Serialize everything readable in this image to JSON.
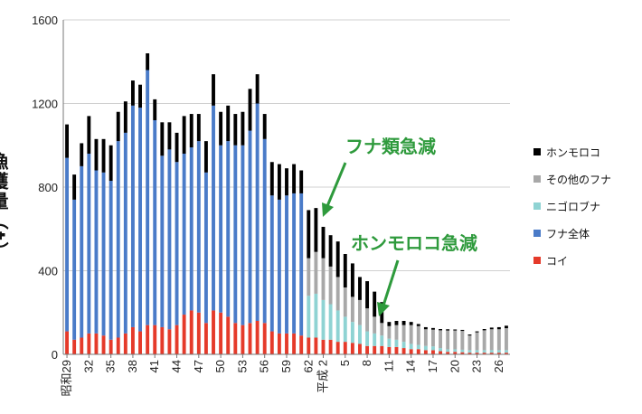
{
  "chart_data": {
    "type": "bar",
    "stacked": true,
    "ylabel": "漁獲量（t）",
    "ylim": [
      0,
      1600
    ],
    "yticks": [
      0,
      400,
      800,
      1200,
      1600
    ],
    "grid": true,
    "legend_position": "right",
    "xticks": [
      {
        "at": 0,
        "label": "昭和29"
      },
      {
        "at": 3,
        "label": "32"
      },
      {
        "at": 6,
        "label": "35"
      },
      {
        "at": 9,
        "label": "38"
      },
      {
        "at": 12,
        "label": "41"
      },
      {
        "at": 15,
        "label": "44"
      },
      {
        "at": 18,
        "label": "47"
      },
      {
        "at": 21,
        "label": "50"
      },
      {
        "at": 24,
        "label": "53"
      },
      {
        "at": 27,
        "label": "56"
      },
      {
        "at": 30,
        "label": "59"
      },
      {
        "at": 33,
        "label": "62"
      },
      {
        "at": 35,
        "label": "平成 2"
      },
      {
        "at": 38,
        "label": "5"
      },
      {
        "at": 41,
        "label": "8"
      },
      {
        "at": 44,
        "label": "11"
      },
      {
        "at": 47,
        "label": "14"
      },
      {
        "at": 50,
        "label": "17"
      },
      {
        "at": 53,
        "label": "20"
      },
      {
        "at": 56,
        "label": "23"
      },
      {
        "at": 59,
        "label": "26"
      }
    ],
    "x": [
      "S29",
      "S30",
      "S31",
      "S32",
      "S33",
      "S34",
      "S35",
      "S36",
      "S37",
      "S38",
      "S39",
      "S40",
      "S41",
      "S42",
      "S43",
      "S44",
      "S45",
      "S46",
      "S47",
      "S48",
      "S49",
      "S50",
      "S51",
      "S52",
      "S53",
      "S54",
      "S55",
      "S56",
      "S57",
      "S58",
      "S59",
      "S60",
      "S61",
      "S62",
      "S63",
      "H1",
      "H2",
      "H3",
      "H4",
      "H5",
      "H6",
      "H7",
      "H8",
      "H9",
      "H10",
      "H11",
      "H12",
      "H13",
      "H14",
      "H15",
      "H16",
      "H17",
      "H18",
      "H19",
      "H20",
      "H21",
      "H22",
      "H23",
      "H24",
      "H25",
      "H26"
    ],
    "series": [
      {
        "name": "コイ",
        "color": "#e53a2a",
        "values": [
          110,
          70,
          80,
          100,
          100,
          90,
          70,
          80,
          100,
          130,
          110,
          140,
          140,
          130,
          120,
          140,
          190,
          210,
          200,
          150,
          210,
          200,
          180,
          150,
          140,
          150,
          160,
          150,
          110,
          100,
          100,
          100,
          90,
          80,
          80,
          70,
          70,
          60,
          60,
          55,
          50,
          40,
          40,
          40,
          35,
          35,
          30,
          25,
          25,
          20,
          20,
          15,
          12,
          12,
          10,
          8,
          8,
          8,
          8,
          8,
          8
        ]
      },
      {
        "name": "フナ全体",
        "color": "#4a7bc8",
        "values": [
          830,
          670,
          820,
          860,
          780,
          780,
          760,
          940,
          960,
          1060,
          1070,
          1220,
          980,
          820,
          860,
          780,
          770,
          780,
          820,
          720,
          980,
          800,
          840,
          850,
          860,
          920,
          1040,
          880,
          650,
          640,
          660,
          670,
          680,
          0,
          0,
          0,
          0,
          0,
          0,
          0,
          0,
          0,
          0,
          0,
          0,
          0,
          0,
          0,
          0,
          0,
          0,
          0,
          0,
          0,
          0,
          0,
          0,
          0,
          0,
          0,
          0
        ]
      },
      {
        "name": "ニゴロブナ",
        "color": "#8fd3d3",
        "values": [
          0,
          0,
          0,
          0,
          0,
          0,
          0,
          0,
          0,
          0,
          0,
          0,
          0,
          0,
          0,
          0,
          0,
          0,
          0,
          0,
          0,
          0,
          0,
          0,
          0,
          0,
          0,
          0,
          0,
          0,
          0,
          0,
          0,
          200,
          210,
          190,
          170,
          150,
          120,
          100,
          90,
          70,
          60,
          50,
          40,
          35,
          30,
          25,
          20,
          20,
          18,
          15,
          12,
          12,
          12,
          12,
          12,
          12,
          12,
          12,
          12
        ]
      },
      {
        "name": "その他のフナ",
        "color": "#a8a8a8",
        "values": [
          0,
          0,
          0,
          0,
          0,
          0,
          0,
          0,
          0,
          0,
          0,
          0,
          0,
          0,
          0,
          0,
          0,
          0,
          0,
          0,
          0,
          0,
          0,
          0,
          0,
          0,
          0,
          0,
          0,
          0,
          0,
          0,
          0,
          180,
          200,
          200,
          180,
          160,
          140,
          120,
          120,
          110,
          80,
          60,
          60,
          70,
          80,
          90,
          90,
          80,
          80,
          85,
          90,
          90,
          90,
          70,
          85,
          95,
          100,
          100,
          105
        ]
      },
      {
        "name": "ホンモロコ",
        "color": "#000000",
        "values": [
          160,
          120,
          110,
          180,
          150,
          160,
          170,
          140,
          150,
          120,
          110,
          80,
          100,
          160,
          130,
          140,
          180,
          160,
          130,
          150,
          150,
          160,
          170,
          150,
          160,
          200,
          140,
          120,
          160,
          170,
          130,
          140,
          110,
          230,
          210,
          150,
          150,
          170,
          160,
          160,
          110,
          130,
          120,
          100,
          20,
          20,
          20,
          15,
          10,
          10,
          8,
          6,
          6,
          5,
          5,
          5,
          5,
          6,
          8,
          10,
          12
        ]
      }
    ],
    "legend": [
      "ホンモロコ",
      "その他のフナ",
      "ニゴロブナ",
      "フナ全体",
      "コイ"
    ],
    "annotations": [
      {
        "text": "フナ類急減"
      },
      {
        "text": "ホンモロコ急減"
      }
    ]
  },
  "annotation_color": "#2e9a3c"
}
